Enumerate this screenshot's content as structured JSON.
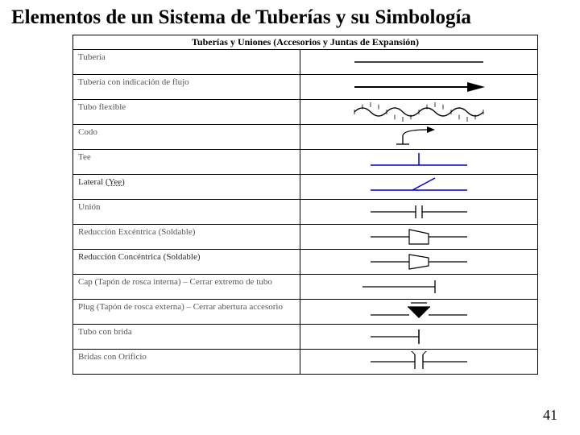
{
  "title": "Elementos de un Sistema de Tuberías y su Simbología",
  "table_header": "Tuberías y Uniones (Accesorios y Juntas de Expansión)",
  "page_number": "41",
  "colors": {
    "line": "#000000",
    "blue": "#0000cc",
    "fill_black": "#000000"
  },
  "rows": [
    {
      "label": "Tubería",
      "symbol": "line",
      "blur": true
    },
    {
      "label": "Tubería con indicación de flujo",
      "symbol": "arrow",
      "blur": true
    },
    {
      "label": "Tubo flexible",
      "symbol": "flexible",
      "blur": true
    },
    {
      "label": "Codo",
      "symbol": "elbow",
      "blur": true
    },
    {
      "label": "Tee",
      "symbol": "tee",
      "blur": true
    },
    {
      "label": "Lateral (Yee)",
      "symbol": "yee",
      "blur": false,
      "dashed_part": "Yee"
    },
    {
      "label": "Unión",
      "symbol": "union",
      "blur": true
    },
    {
      "label": "Reducción Excéntrica (Soldable)",
      "symbol": "red_exc",
      "blur": true
    },
    {
      "label": "Reducción Concéntrica (Soldable)",
      "symbol": "red_con",
      "blur": false
    },
    {
      "label": "Cap (Tapón de rosca interna) – Cerrar extremo de tubo",
      "symbol": "cap",
      "blur": true
    },
    {
      "label": "Plug (Tapón de rosca externa) – Cerrar abertura accesorio",
      "symbol": "plug",
      "blur": true
    },
    {
      "label": "Tubo con brida",
      "symbol": "flange",
      "blur": true
    },
    {
      "label": "Bridas con Orificio",
      "symbol": "orifice",
      "blur": true
    }
  ]
}
